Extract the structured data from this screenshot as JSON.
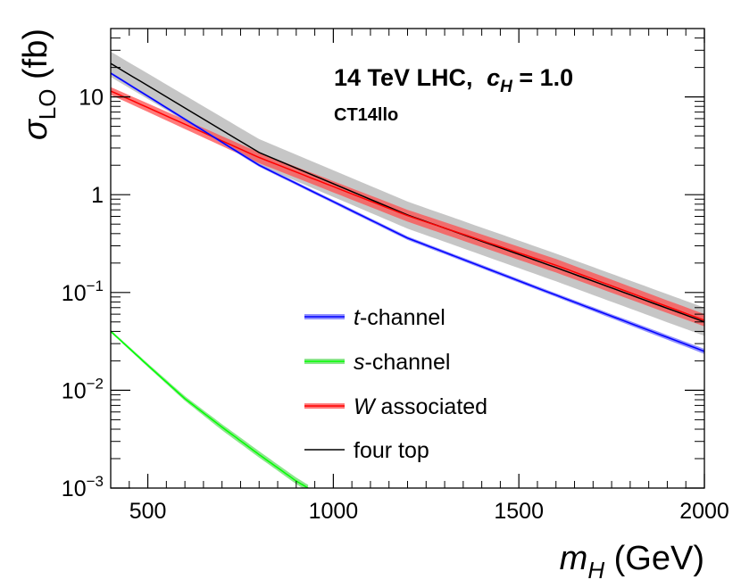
{
  "chart_data": {
    "type": "line",
    "title": "14 TeV LHC, c_H = 1.0",
    "annotation": {
      "energy_text": "14 TeV LHC,",
      "c_symbol": "c",
      "c_subscript": "H",
      "c_value_text": " = 1.0",
      "pdf_text": "CT14llo"
    },
    "xlabel": {
      "symbol": "m",
      "subscript": "H",
      "unit": " (GeV)"
    },
    "ylabel": {
      "symbol": "σ",
      "subscript": "LO",
      "unit": " (fb)"
    },
    "xlim": [
      400,
      2000
    ],
    "ylim": [
      0.001,
      50
    ],
    "yscale": "log",
    "x_ticks": [
      {
        "value": 500,
        "label": "500"
      },
      {
        "value": 1000,
        "label": "1000"
      },
      {
        "value": 1500,
        "label": "1500"
      },
      {
        "value": 2000,
        "label": "2000"
      }
    ],
    "y_ticks": [
      {
        "value": 0.001,
        "base": "10",
        "exp": "−3"
      },
      {
        "value": 0.01,
        "base": "10",
        "exp": "−2"
      },
      {
        "value": 0.1,
        "base": "10",
        "exp": "−1"
      },
      {
        "value": 1,
        "base": "1",
        "exp": ""
      },
      {
        "value": 10,
        "base": "10",
        "exp": ""
      }
    ],
    "legend_position": "center-bottom",
    "series": [
      {
        "name": "four top",
        "legend_italic": "",
        "legend_rest": "four top",
        "color": "#000000",
        "band_color": "#b3b3b3",
        "x": [
          400,
          800,
          1200,
          1600,
          2000
        ],
        "y": [
          22,
          2.7,
          0.62,
          0.18,
          0.05
        ],
        "band_lower": [
          16,
          2.0,
          0.45,
          0.13,
          0.036
        ],
        "band_upper": [
          29,
          3.7,
          0.85,
          0.25,
          0.07
        ]
      },
      {
        "name": "W associated",
        "legend_italic": "W",
        "legend_rest": " associated",
        "color": "#ff0000",
        "band_color": "#ff4d4d",
        "x": [
          400,
          800,
          1200,
          1600,
          2000
        ],
        "y": [
          11.5,
          2.4,
          0.61,
          0.19,
          0.052
        ],
        "band_lower": [
          10.5,
          2.1,
          0.53,
          0.16,
          0.045
        ],
        "band_upper": [
          12.6,
          2.7,
          0.7,
          0.22,
          0.06
        ]
      },
      {
        "name": "t-channel",
        "legend_italic": "t",
        "legend_rest": "-channel",
        "color": "#0000ff",
        "band_color": "#6b6bff",
        "x": [
          400,
          800,
          1200,
          1600,
          2000
        ],
        "y": [
          17.5,
          2.0,
          0.36,
          0.094,
          0.025
        ],
        "band_lower": [
          17.0,
          1.93,
          0.345,
          0.09,
          0.0235
        ],
        "band_upper": [
          18.0,
          2.07,
          0.375,
          0.098,
          0.0265
        ]
      },
      {
        "name": "s-channel",
        "legend_italic": "s",
        "legend_rest": "-channel",
        "color": "#00ff00",
        "band_color": "#66dd66",
        "x": [
          400,
          500,
          600,
          700,
          800,
          900,
          932
        ],
        "y": [
          0.04,
          0.018,
          0.0082,
          0.0042,
          0.0022,
          0.00118,
          0.001
        ],
        "band_lower": [
          0.039,
          0.0173,
          0.0078,
          0.0039,
          0.00205,
          0.0011,
          0.00092
        ],
        "band_upper": [
          0.0415,
          0.0188,
          0.0087,
          0.0045,
          0.00238,
          0.00128,
          0.00108
        ]
      }
    ],
    "legend_order": [
      "t-channel",
      "s-channel",
      "W associated",
      "four top"
    ]
  }
}
